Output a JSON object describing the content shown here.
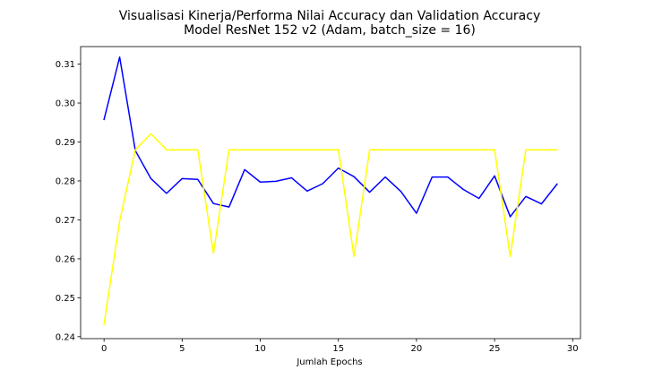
{
  "chart_data": {
    "type": "line",
    "title": "Visualisasi Kinerja/Performa Nilai Accuracy dan Validation Accuracy",
    "subtitle": "Model ResNet 152 v2 (Adam, batch_size = 16)",
    "xlabel": "Jumlah Epochs",
    "ylabel": "",
    "xlim": [
      -1.5,
      30.5
    ],
    "ylim": [
      0.2395,
      0.3145
    ],
    "x_ticks": [
      0,
      5,
      10,
      15,
      20,
      25,
      30
    ],
    "y_ticks": [
      0.24,
      0.25,
      0.26,
      0.27,
      0.28,
      0.29,
      0.3,
      0.31
    ],
    "y_tick_labels": [
      "0.24",
      "0.25",
      "0.26",
      "0.27",
      "0.28",
      "0.29",
      "0.30",
      "0.31"
    ],
    "grid": false,
    "legend": "none",
    "x": [
      0,
      1,
      2,
      3,
      4,
      5,
      6,
      7,
      8,
      9,
      10,
      11,
      12,
      13,
      14,
      15,
      16,
      17,
      18,
      19,
      20,
      21,
      22,
      23,
      24,
      25,
      26,
      27,
      28,
      29
    ],
    "series": [
      {
        "color": "#0000ff",
        "values": [
          0.2958,
          0.3118,
          0.2878,
          0.2806,
          0.2768,
          0.2806,
          0.2804,
          0.2742,
          0.2733,
          0.2829,
          0.2797,
          0.2799,
          0.2808,
          0.2774,
          0.2793,
          0.2833,
          0.2811,
          0.2771,
          0.281,
          0.2773,
          0.2717,
          0.281,
          0.281,
          0.2778,
          0.2755,
          0.2813,
          0.2708,
          0.276,
          0.2741,
          0.2792
        ]
      },
      {
        "color": "#ffff00",
        "values": [
          0.2432,
          0.2697,
          0.288,
          0.2921,
          0.288,
          0.288,
          0.288,
          0.2614,
          0.288,
          0.288,
          0.288,
          0.288,
          0.288,
          0.288,
          0.288,
          0.288,
          0.2606,
          0.288,
          0.288,
          0.288,
          0.288,
          0.288,
          0.288,
          0.288,
          0.288,
          0.288,
          0.2606,
          0.288,
          0.288,
          0.288
        ]
      }
    ]
  }
}
